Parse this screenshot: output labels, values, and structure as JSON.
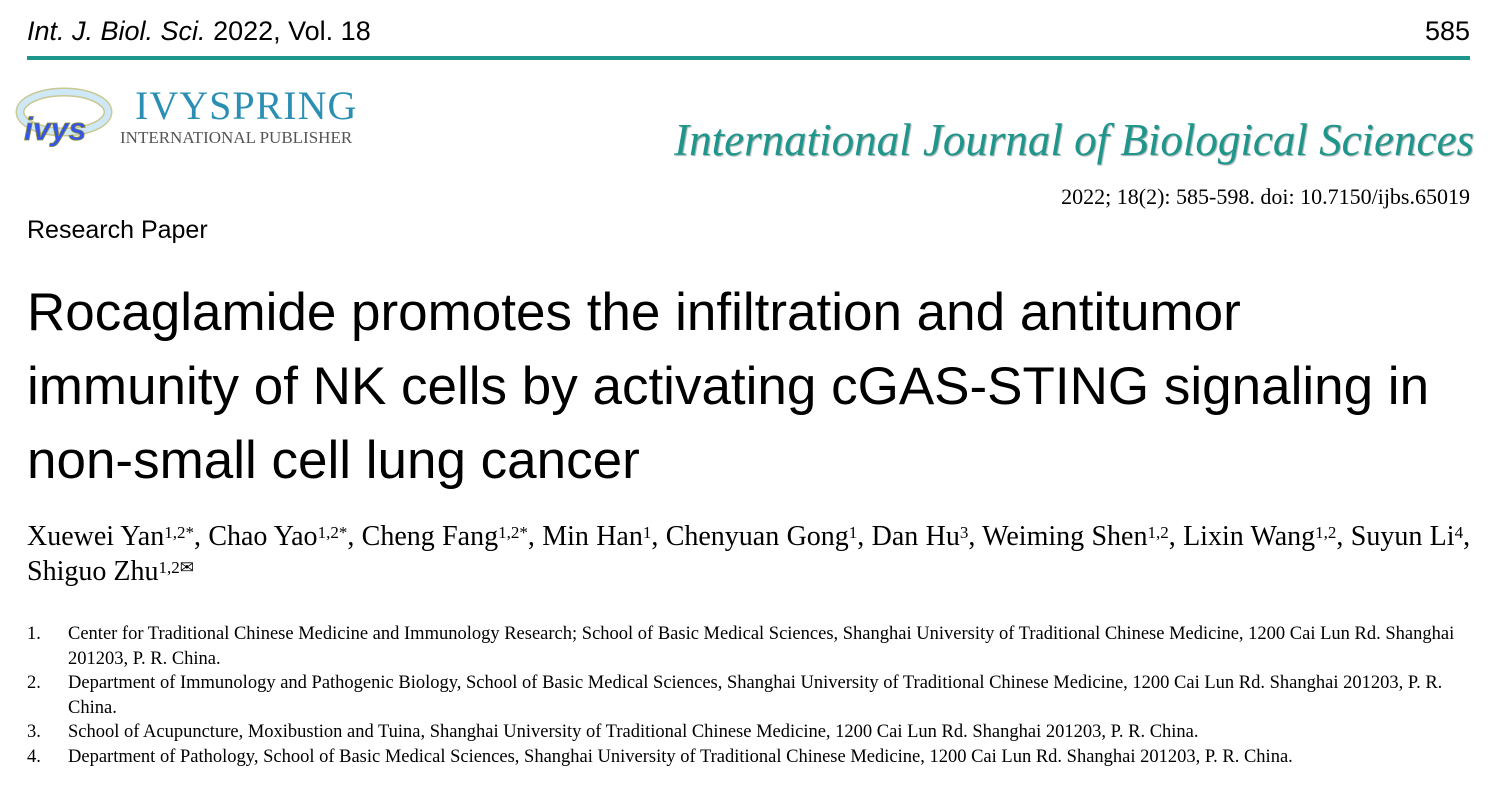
{
  "header": {
    "journal_abbrev": "Int. J. Biol. Sci.",
    "year_vol": "2022, Vol. 18",
    "page_number": "585",
    "rule_color": "#1f968b"
  },
  "publisher": {
    "logo_text": "ivys",
    "name": "IVYSPRING",
    "subtitle": "INTERNATIONAL PUBLISHER"
  },
  "journal_title": "International Journal of Biological Sciences",
  "citation": "2022; 18(2): 585-598. doi: 10.7150/ijbs.65019",
  "paper_type": "Research Paper",
  "title": "Rocaglamide promotes the infiltration and antitumor immunity of NK cells by activating cGAS-STING signaling in non-small cell lung cancer",
  "authors": [
    {
      "name": "Xuewei Yan",
      "sup": "1,2*",
      "sep": ", "
    },
    {
      "name": "Chao Yao",
      "sup": "1,2*",
      "sep": ", "
    },
    {
      "name": "Cheng Fang",
      "sup": "1,2*",
      "sep": ", "
    },
    {
      "name": "Min Han",
      "sup": "1",
      "sep": ", "
    },
    {
      "name": "Chenyuan Gong",
      "sup": "1",
      "sep": ", "
    },
    {
      "name": "Dan Hu",
      "sup": "3",
      "sep": ", "
    },
    {
      "name": "Weiming Shen",
      "sup": "1,2",
      "sep": ", "
    },
    {
      "name": "Lixin Wang",
      "sup": "1,2",
      "sep": ", "
    },
    {
      "name": "Suyun Li",
      "sup": "4",
      "sep": ", "
    },
    {
      "name": "Shiguo Zhu",
      "sup": "1,2✉",
      "sep": ""
    }
  ],
  "affiliations": [
    {
      "num": "1.",
      "text": "Center for Traditional Chinese Medicine and Immunology Research; School of Basic Medical Sciences, Shanghai University of Traditional Chinese Medicine, 1200 Cai Lun Rd. Shanghai 201203, P. R. China."
    },
    {
      "num": "2.",
      "text": "Department of Immunology and Pathogenic Biology, School of Basic Medical Sciences, Shanghai University of Traditional Chinese Medicine, 1200 Cai Lun Rd. Shanghai 201203, P. R. China."
    },
    {
      "num": "3.",
      "text": "School of Acupuncture, Moxibustion and Tuina, Shanghai University of Traditional Chinese Medicine, 1200 Cai Lun Rd. Shanghai 201203, P. R. China."
    },
    {
      "num": "4.",
      "text": "Department of Pathology, School of Basic Medical Sciences, Shanghai University of Traditional Chinese Medicine, 1200 Cai Lun Rd. Shanghai 201203, P. R. China."
    }
  ]
}
